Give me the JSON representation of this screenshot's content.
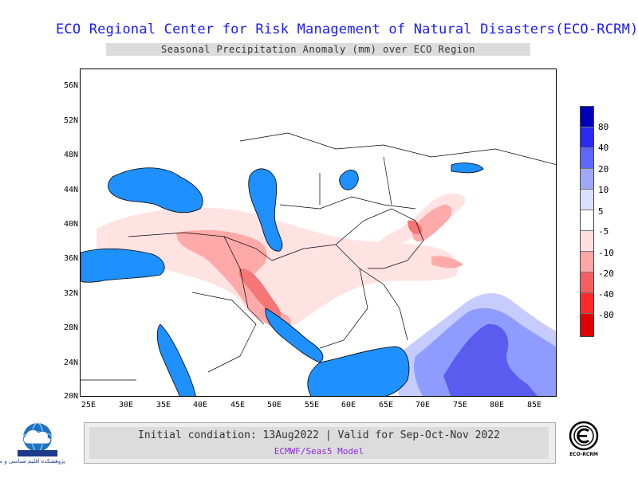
{
  "title": "ECO Regional Center for Risk Management of Natural Disasters(ECO-RCRM)",
  "subtitle": "Seasonal Precipitation Anomaly (mm) over ECO Region",
  "map": {
    "lat_labels": [
      "56N",
      "52N",
      "48N",
      "44N",
      "40N",
      "36N",
      "32N",
      "28N",
      "24N",
      "20N"
    ],
    "lon_labels": [
      "25E",
      "30E",
      "35E",
      "40E",
      "45E",
      "50E",
      "55E",
      "60E",
      "65E",
      "70E",
      "75E",
      "80E",
      "85E"
    ],
    "colors": {
      "water": "#1e90ff",
      "land": "#ffffff",
      "border": "#000000",
      "wet_light": "#c7ccff",
      "wet_mid": "#8f9cff",
      "wet_strong": "#5a5cf0",
      "dry_light": "#ffe3e3",
      "dry_mid": "#ffaaa8",
      "dry_strong": "#f47676"
    }
  },
  "legend": {
    "labels": [
      "80",
      "40",
      "20",
      "10",
      "5",
      "-5",
      "-10",
      "-20",
      "-40",
      "-80"
    ],
    "colors": [
      "#0000b8",
      "#2a2af0",
      "#5e68f7",
      "#a0a8fb",
      "#dcdfff",
      "#ffffff",
      "#ffe0e0",
      "#ffa6a6",
      "#f46060",
      "#ff2a2a",
      "#e00000"
    ]
  },
  "footer": {
    "line1": "Initial condiation: 13Aug2022 | Valid for Sep-Oct-Nov 2022",
    "line2": "ECMWF/Seas5 Model"
  },
  "logos": {
    "left_text": "پژوهشکده اقلیم شناسی و تغییر اقلیم",
    "right_text": "ECO-RCRM"
  }
}
